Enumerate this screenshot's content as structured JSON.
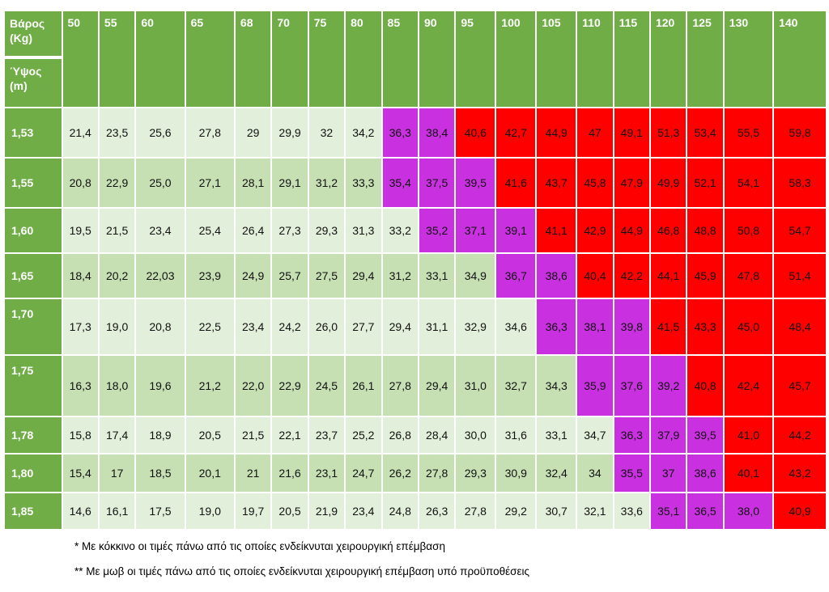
{
  "colors": {
    "header_green": "#70ad47",
    "normal_light": "#e2efda",
    "normal_mid": "#c6e0b4",
    "purple": "#c931e0",
    "red": "#fe0000"
  },
  "header": {
    "weight_label_line1": "Βάρος",
    "weight_label_line2": "(Kg)",
    "height_label_line1": "Ύψος",
    "height_label_line2": "(m)",
    "weights": [
      "50",
      "55",
      "60",
      "65",
      "68",
      "70",
      "75",
      "80",
      "85",
      "90",
      "95",
      "100",
      "105",
      "110",
      "115",
      "120",
      "125",
      "130",
      "140"
    ]
  },
  "rows": [
    {
      "height": "1,53",
      "values": [
        "21,4",
        "23,5",
        "25,6",
        "27,8",
        "29",
        "29,9",
        "32",
        "34,2",
        "36,3",
        "38,4",
        "40,6",
        "42,7",
        "44,9",
        "47",
        "49,1",
        "51,3",
        "53,4",
        "55,5",
        "59,8"
      ],
      "classes": [
        "L",
        "L",
        "L",
        "L",
        "L",
        "L",
        "L",
        "L",
        "P",
        "P",
        "R",
        "R",
        "R",
        "R",
        "R",
        "R",
        "R",
        "R",
        "R"
      ]
    },
    {
      "height": "1,55",
      "values": [
        "20,8",
        "22,9",
        "25,0",
        "27,1",
        "28,1",
        "29,1",
        "31,2",
        "33,3",
        "35,4",
        "37,5",
        "39,5",
        "41,6",
        "43,7",
        "45,8",
        "47,9",
        "49,9",
        "52,1",
        "54,1",
        "58,3"
      ],
      "classes": [
        "M",
        "M",
        "M",
        "M",
        "M",
        "M",
        "M",
        "M",
        "P",
        "P",
        "P",
        "R",
        "R",
        "R",
        "R",
        "R",
        "R",
        "R",
        "R"
      ]
    },
    {
      "height": "1,60",
      "values": [
        "19,5",
        "21,5",
        "23,4",
        "25,4",
        "26,4",
        "27,3",
        "29,3",
        "31,3",
        "33,2",
        "35,2",
        "37,1",
        "39,1",
        "41,1",
        "42,9",
        "44,9",
        "46,8",
        "48,8",
        "50,8",
        "54,7"
      ],
      "classes": [
        "L",
        "L",
        "L",
        "L",
        "L",
        "L",
        "L",
        "L",
        "L",
        "P",
        "P",
        "P",
        "R",
        "R",
        "R",
        "R",
        "R",
        "R",
        "R"
      ]
    },
    {
      "height": "1,65",
      "values": [
        "18,4",
        "20,2",
        "22,03",
        "23,9",
        "24,9",
        "25,7",
        "27,5",
        "29,4",
        "31,2",
        "33,1",
        "34,9",
        "36,7",
        "38,6",
        "40,4",
        "42,2",
        "44,1",
        "45,9",
        "47,8",
        "51,4"
      ],
      "classes": [
        "M",
        "M",
        "M",
        "M",
        "M",
        "M",
        "M",
        "M",
        "M",
        "M",
        "M",
        "P",
        "P",
        "R",
        "R",
        "R",
        "R",
        "R",
        "R"
      ]
    },
    {
      "height": "1,70",
      "values": [
        "17,3",
        "19,0",
        "20,8",
        "22,5",
        "23,4",
        "24,2",
        "26,0",
        "27,7",
        "29,4",
        "31,1",
        "32,9",
        "34,6",
        "36,3",
        "38,1",
        "39,8",
        "41,5",
        "43,3",
        "45,0",
        "48,4"
      ],
      "classes": [
        "L",
        "L",
        "L",
        "L",
        "L",
        "L",
        "L",
        "L",
        "L",
        "L",
        "L",
        "L",
        "P",
        "P",
        "P",
        "R",
        "R",
        "R",
        "R"
      ]
    },
    {
      "height": "1,75",
      "values": [
        "16,3",
        "18,0",
        "19,6",
        "21,2",
        "22,0",
        "22,9",
        "24,5",
        "26,1",
        "27,8",
        "29,4",
        "31,0",
        "32,7",
        "34,3",
        "35,9",
        "37,6",
        "39,2",
        "40,8",
        "42,4",
        "45,7"
      ],
      "classes": [
        "M",
        "M",
        "M",
        "M",
        "M",
        "M",
        "M",
        "M",
        "M",
        "M",
        "M",
        "M",
        "M",
        "P",
        "P",
        "P",
        "R",
        "R",
        "R"
      ]
    },
    {
      "height": "1,78",
      "values": [
        "15,8",
        "17,4",
        "18,9",
        "20,5",
        "21,5",
        "22,1",
        "23,7",
        "25,2",
        "26,8",
        "28,4",
        "30,0",
        "31,6",
        "33,1",
        "34,7",
        "36,3",
        "37,9",
        "39,5",
        "41,0",
        "44,2"
      ],
      "classes": [
        "L",
        "L",
        "L",
        "L",
        "L",
        "L",
        "L",
        "L",
        "L",
        "L",
        "L",
        "L",
        "L",
        "L",
        "P",
        "P",
        "P",
        "R",
        "R"
      ]
    },
    {
      "height": "1,80",
      "values": [
        "15,4",
        "17",
        "18,5",
        "20,1",
        "21",
        "21,6",
        "23,1",
        "24,7",
        "26,2",
        "27,8",
        "29,3",
        "30,9",
        "32,4",
        "34",
        "35,5",
        "37",
        "38,6",
        "40,1",
        "43,2"
      ],
      "classes": [
        "M",
        "M",
        "M",
        "M",
        "M",
        "M",
        "M",
        "M",
        "M",
        "M",
        "M",
        "M",
        "M",
        "M",
        "P",
        "P",
        "P",
        "R",
        "R"
      ]
    },
    {
      "height": "1,85",
      "values": [
        "14,6",
        "16,1",
        "17,5",
        "19,0",
        "19,7",
        "20,5",
        "21,9",
        "23,4",
        "24,8",
        "26,3",
        "27,8",
        "29,2",
        "30,7",
        "32,1",
        "33,6",
        "35,1",
        "36,5",
        "38,0",
        "40,9"
      ],
      "classes": [
        "L",
        "L",
        "L",
        "L",
        "L",
        "L",
        "L",
        "L",
        "L",
        "L",
        "L",
        "L",
        "L",
        "L",
        "L",
        "P",
        "P",
        "P",
        "R"
      ]
    }
  ],
  "notes": {
    "red_note": "* Με κόκκινο οι τιμές πάνω από τις οποίες ενδείκνυται χειρουργική επέμβαση",
    "purple_note": "** Με μωβ οι τιμές πάνω από τις οποίες ενδείκνυται χειρουργική επέμβαση υπό προϋποθέσεις"
  }
}
